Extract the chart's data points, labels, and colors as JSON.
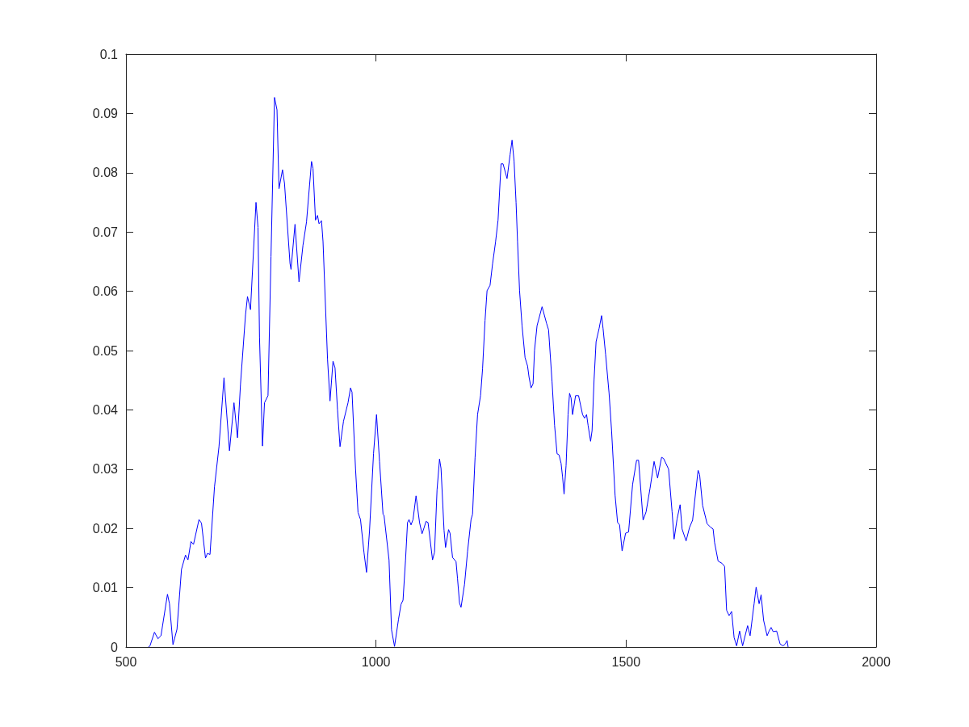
{
  "chart_data": {
    "type": "line",
    "x": [
      545,
      548,
      557,
      564,
      570,
      583,
      587,
      594,
      602,
      611,
      619,
      624,
      630,
      635,
      646,
      651,
      659,
      663,
      668,
      677,
      686,
      696,
      707,
      716,
      723,
      729,
      739,
      743,
      749,
      760,
      764,
      767,
      773,
      777,
      784,
      790,
      797,
      802,
      806,
      813,
      817,
      828,
      830,
      838,
      846,
      854,
      861,
      871,
      874,
      879,
      883,
      886,
      891,
      894,
      903,
      908,
      914,
      918,
      923,
      928,
      935,
      944,
      949,
      952,
      959,
      964,
      969,
      976,
      981,
      987,
      995,
      1001,
      1007,
      1014,
      1016,
      1026,
      1031,
      1037,
      1045,
      1050,
      1054,
      1059,
      1063,
      1066,
      1070,
      1074,
      1080,
      1087,
      1092,
      1096,
      1100,
      1104,
      1113,
      1117,
      1122,
      1127,
      1130,
      1136,
      1139,
      1145,
      1148,
      1153,
      1160,
      1163,
      1167,
      1170,
      1177,
      1183,
      1190,
      1193,
      1198,
      1203,
      1209,
      1213,
      1218,
      1222,
      1228,
      1233,
      1239,
      1244,
      1250,
      1254,
      1262,
      1268,
      1272,
      1276,
      1280,
      1283,
      1287,
      1292,
      1298,
      1303,
      1306,
      1310,
      1314,
      1317,
      1322,
      1332,
      1341,
      1345,
      1352,
      1357,
      1362,
      1366,
      1370,
      1373,
      1376,
      1380,
      1384,
      1387,
      1390,
      1393,
      1399,
      1405,
      1413,
      1417,
      1421,
      1424,
      1429,
      1432,
      1436,
      1440,
      1446,
      1451,
      1454,
      1459,
      1466,
      1471,
      1478,
      1483,
      1487,
      1492,
      1499,
      1505,
      1513,
      1521,
      1525,
      1534,
      1540,
      1548,
      1556,
      1563,
      1571,
      1575,
      1585,
      1592,
      1596,
      1602,
      1608,
      1612,
      1620,
      1627,
      1633,
      1637,
      1644,
      1647,
      1653,
      1662,
      1669,
      1674,
      1677,
      1684,
      1692,
      1697,
      1701,
      1706,
      1711,
      1716,
      1721,
      1727,
      1733,
      1743,
      1748,
      1756,
      1760,
      1766,
      1770,
      1775,
      1782,
      1786,
      1790,
      1794,
      1801,
      1808,
      1814,
      1818,
      1822,
      1824
    ],
    "series": [
      {
        "color": "#0000ff",
        "values": [
          0,
          0.0002,
          0.0025,
          0.0014,
          0.0019,
          0.0089,
          0.0073,
          0.0004,
          0.003,
          0.0131,
          0.0155,
          0.0147,
          0.0178,
          0.0173,
          0.0215,
          0.0209,
          0.015,
          0.0158,
          0.0156,
          0.027,
          0.0338,
          0.0454,
          0.0331,
          0.0412,
          0.0353,
          0.0443,
          0.056,
          0.0591,
          0.0569,
          0.075,
          0.0708,
          0.0523,
          0.0339,
          0.0412,
          0.0424,
          0.0659,
          0.0927,
          0.0906,
          0.0773,
          0.0805,
          0.0782,
          0.0647,
          0.0637,
          0.0713,
          0.0616,
          0.0678,
          0.0717,
          0.0819,
          0.0807,
          0.072,
          0.0728,
          0.0714,
          0.0719,
          0.0684,
          0.0486,
          0.0415,
          0.0482,
          0.0471,
          0.04,
          0.0338,
          0.0381,
          0.0412,
          0.0437,
          0.043,
          0.0301,
          0.0227,
          0.0215,
          0.0159,
          0.0126,
          0.0196,
          0.0326,
          0.0392,
          0.0313,
          0.0224,
          0.0222,
          0.0147,
          0.0029,
          0.0001,
          0.0047,
          0.0072,
          0.0079,
          0.0147,
          0.021,
          0.0215,
          0.0206,
          0.0215,
          0.0255,
          0.021,
          0.0191,
          0.0201,
          0.0212,
          0.021,
          0.0147,
          0.016,
          0.0265,
          0.0317,
          0.0301,
          0.0197,
          0.0168,
          0.0198,
          0.0192,
          0.0151,
          0.0144,
          0.0115,
          0.0074,
          0.0067,
          0.0106,
          0.0161,
          0.0215,
          0.0224,
          0.0319,
          0.0392,
          0.0424,
          0.0469,
          0.0551,
          0.0601,
          0.061,
          0.0646,
          0.0683,
          0.072,
          0.0815,
          0.0815,
          0.079,
          0.083,
          0.0855,
          0.082,
          0.075,
          0.0683,
          0.0601,
          0.0542,
          0.0488,
          0.0474,
          0.0455,
          0.0437,
          0.0444,
          0.0501,
          0.0542,
          0.0574,
          0.0546,
          0.0535,
          0.0447,
          0.0374,
          0.0326,
          0.0324,
          0.031,
          0.0287,
          0.0258,
          0.0306,
          0.0392,
          0.0428,
          0.042,
          0.0392,
          0.0424,
          0.0424,
          0.0392,
          0.0386,
          0.0392,
          0.0374,
          0.0347,
          0.0365,
          0.0451,
          0.0515,
          0.0537,
          0.0559,
          0.0537,
          0.0494,
          0.0428,
          0.0365,
          0.0256,
          0.021,
          0.0206,
          0.0162,
          0.0192,
          0.0194,
          0.0274,
          0.0315,
          0.0315,
          0.0214,
          0.0228,
          0.0268,
          0.0313,
          0.0285,
          0.032,
          0.0318,
          0.03,
          0.0228,
          0.0182,
          0.0216,
          0.024,
          0.0199,
          0.0179,
          0.0202,
          0.0214,
          0.0245,
          0.0298,
          0.0291,
          0.0239,
          0.0208,
          0.0202,
          0.0199,
          0.0176,
          0.0145,
          0.0141,
          0.0136,
          0.0062,
          0.0053,
          0.006,
          0.0016,
          0.0002,
          0.0027,
          0.0002,
          0.0036,
          0.0019,
          0.0073,
          0.0101,
          0.0073,
          0.0088,
          0.0045,
          0.0019,
          0.0027,
          0.0033,
          0.0026,
          0.0027,
          0.0005,
          0.0002,
          0.0005,
          0.0011,
          0
        ]
      }
    ],
    "xlim": [
      500,
      2000
    ],
    "xticks": [
      500,
      1000,
      1500,
      2000
    ],
    "ylim": [
      0,
      0.1
    ],
    "yticks": [
      0,
      0.01,
      0.02,
      0.03,
      0.04,
      0.05,
      0.06,
      0.07,
      0.08,
      0.09,
      0.1
    ]
  }
}
